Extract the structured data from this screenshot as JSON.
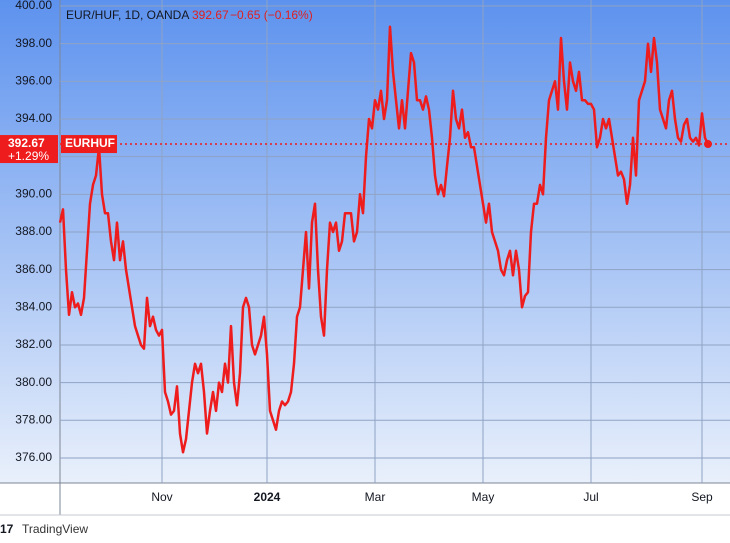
{
  "chart_data": {
    "type": "line",
    "title": "EUR/HUF, 1D, OANDA",
    "last_value": 392.67,
    "change": "−0.65 (−0.16%)",
    "change_pct": "+1.29%",
    "symbol": "EURHUF",
    "source": "TradingView",
    "color": "#ee1c1c",
    "grid": true,
    "ylim": [
      374.67,
      400.32
    ],
    "yticks": [
      {
        "value": 376,
        "label": "376.00"
      },
      {
        "value": 378,
        "label": "378.00"
      },
      {
        "value": 380,
        "label": "380.00"
      },
      {
        "value": 382,
        "label": "382.00"
      },
      {
        "value": 384,
        "label": "384.00"
      },
      {
        "value": 386,
        "label": "386.00"
      },
      {
        "value": 388,
        "label": "388.00"
      },
      {
        "value": 390,
        "label": "390.00"
      },
      {
        "value": 392,
        "label": "392.00"
      },
      {
        "value": 394,
        "label": "394.00"
      },
      {
        "value": 396,
        "label": "396.00"
      },
      {
        "value": 398,
        "label": "398.00"
      },
      {
        "value": 400,
        "label": "400.00"
      }
    ],
    "categories": [
      null,
      null,
      null,
      null,
      null,
      null,
      null,
      null,
      null,
      null,
      null,
      null,
      null,
      null,
      null,
      null,
      null,
      null,
      null,
      null,
      null,
      null,
      null,
      null,
      null,
      null,
      null,
      null,
      null,
      null,
      null,
      null,
      null,
      null,
      "Nov",
      null,
      null,
      null,
      null,
      null,
      null,
      null,
      null,
      null,
      null,
      null,
      null,
      null,
      null,
      null,
      null,
      null,
      null,
      null,
      null,
      null,
      null,
      null,
      null,
      null,
      null,
      null,
      null,
      null,
      null,
      null,
      null,
      null,
      null,
      "2024",
      null,
      null,
      null,
      null,
      null,
      null,
      null,
      null,
      null,
      null,
      null,
      null,
      null,
      null,
      null,
      null,
      null,
      null,
      null,
      null,
      null,
      null,
      null,
      null,
      null,
      null,
      null,
      null,
      null,
      null,
      null,
      null,
      null,
      null,
      null,
      "Mar",
      null,
      null,
      null,
      null,
      null,
      null,
      null,
      null,
      null,
      null,
      null,
      null,
      null,
      null,
      null,
      null,
      null,
      null,
      null,
      null,
      null,
      null,
      null,
      null,
      null,
      null,
      null,
      null,
      null,
      null,
      null,
      null,
      null,
      null,
      null,
      "May",
      null,
      null,
      null,
      null,
      null,
      null,
      null,
      null,
      null,
      null,
      null,
      null,
      null,
      null,
      null,
      null,
      null,
      null,
      null,
      null,
      null,
      null,
      null,
      null,
      null,
      null,
      null,
      null,
      null,
      null,
      null,
      null,
      null,
      null,
      null,
      "Jul",
      null,
      null,
      null,
      null,
      null,
      null,
      null,
      null,
      null,
      null,
      null,
      null,
      null,
      null,
      null,
      null,
      null,
      null,
      null,
      null,
      null,
      null,
      null,
      null,
      null,
      null,
      null,
      null,
      null,
      null,
      null,
      null,
      null,
      null,
      null,
      null,
      "Sep",
      null,
      null
    ],
    "values": [
      388.5,
      389.2,
      386,
      383.6,
      384.8,
      384,
      384.2,
      383.6,
      384.5,
      387,
      389.5,
      390.5,
      391,
      392.5,
      390,
      389,
      389,
      387.5,
      386.5,
      388.5,
      386.5,
      387.5,
      386,
      385,
      384,
      383,
      382.5,
      382,
      381.8,
      384.5,
      383,
      383.5,
      382.8,
      382.5,
      382.8,
      379.5,
      379,
      378.3,
      378.5,
      379.8,
      377.3,
      376.3,
      377,
      378.5,
      380,
      381,
      380.5,
      381,
      379.5,
      377.3,
      378.5,
      379.5,
      378.5,
      380,
      379.5,
      381,
      380,
      383,
      380,
      378.8,
      380.5,
      384,
      384.5,
      384,
      382,
      381.5,
      382,
      382.5,
      383.5,
      381.5,
      378.5,
      378,
      377.5,
      378.5,
      379,
      378.8,
      379,
      379.5,
      381,
      383.5,
      384,
      386,
      388,
      385,
      388.5,
      389.5,
      386,
      383.5,
      382.5,
      386,
      388.5,
      388,
      388.5,
      387,
      387.5,
      389,
      389,
      389,
      387.5,
      388,
      390,
      389,
      392,
      394,
      393.5,
      395,
      394.5,
      395.5,
      394,
      395,
      398.9,
      396.5,
      395,
      393.5,
      395,
      393.5,
      395.5,
      397.5,
      397,
      395,
      395,
      394.5,
      395.2,
      394.5,
      393,
      391,
      390,
      390.5,
      389.9,
      391.5,
      393,
      395.5,
      394,
      393.5,
      394.5,
      393,
      393.3,
      392.5,
      392.5,
      391.5,
      390.5,
      389.5,
      388.5,
      389.5,
      388,
      387.5,
      387,
      386,
      385.7,
      386.5,
      387,
      385.7,
      387,
      386,
      384,
      384.6,
      384.8,
      388,
      389.5,
      389.5,
      390.5,
      390,
      393,
      395,
      395.5,
      396,
      394.5,
      398.3,
      396,
      394.5,
      397,
      396,
      395.5,
      396.5,
      395,
      395,
      394.8,
      394.8,
      394.5,
      392.5,
      393,
      394,
      393.5,
      394,
      393,
      392,
      391,
      391.2,
      390.8,
      389.5,
      390.5,
      393,
      391,
      395,
      395.5,
      396,
      398,
      396.5,
      398.3,
      397,
      394.5,
      394,
      393.5,
      395,
      395.5,
      394,
      393,
      392.8,
      393.7,
      394,
      393,
      392.8,
      393,
      392.6,
      394.3,
      393,
      392.67
    ]
  }
}
